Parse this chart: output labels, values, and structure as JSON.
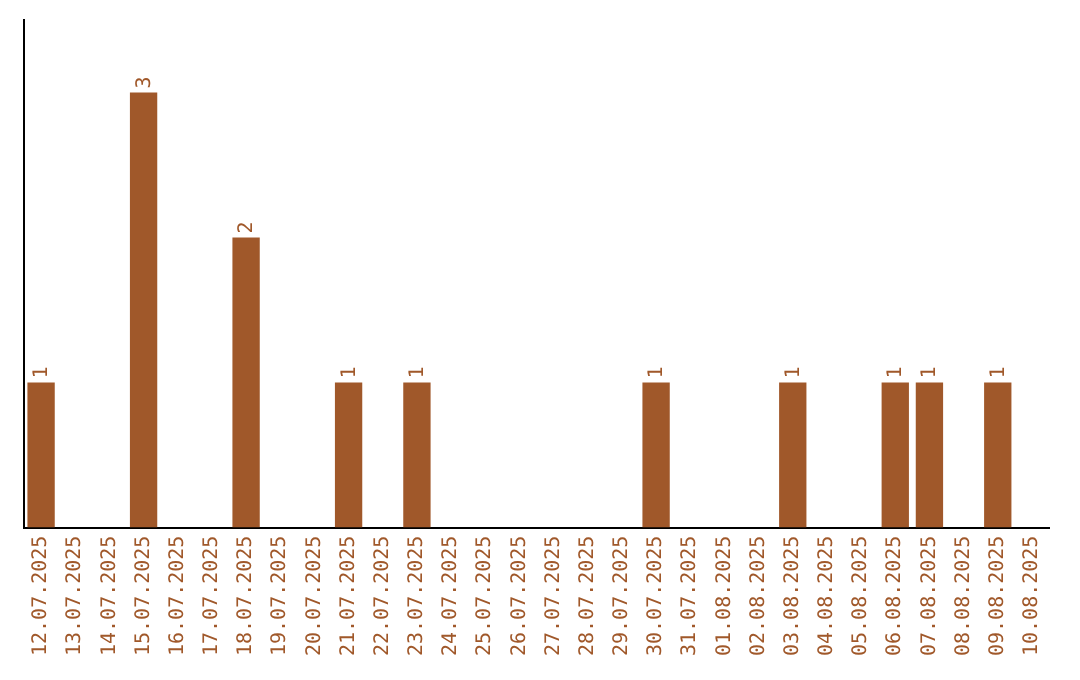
{
  "chart_data": {
    "type": "bar",
    "categories": [
      "12.07.2025",
      "13.07.2025",
      "14.07.2025",
      "15.07.2025",
      "16.07.2025",
      "17.07.2025",
      "18.07.2025",
      "19.07.2025",
      "20.07.2025",
      "21.07.2025",
      "22.07.2025",
      "23.07.2025",
      "24.07.2025",
      "25.07.2025",
      "26.07.2025",
      "27.07.2025",
      "28.07.2025",
      "29.07.2025",
      "30.07.2025",
      "31.07.2025",
      "01.08.2025",
      "02.08.2025",
      "03.08.2025",
      "04.08.2025",
      "05.08.2025",
      "06.08.2025",
      "07.08.2025",
      "08.08.2025",
      "09.08.2025",
      "10.08.2025"
    ],
    "values": [
      1,
      0,
      0,
      3,
      0,
      0,
      2,
      0,
      0,
      1,
      0,
      1,
      0,
      0,
      0,
      0,
      0,
      0,
      1,
      0,
      0,
      0,
      1,
      0,
      0,
      1,
      1,
      0,
      1,
      0
    ],
    "value_labels": [
      "1",
      null,
      null,
      "3",
      null,
      null,
      "2",
      null,
      null,
      "1",
      null,
      "1",
      null,
      null,
      null,
      null,
      null,
      null,
      "1",
      null,
      null,
      null,
      "1",
      null,
      null,
      "1",
      "1",
      null,
      "1",
      null
    ],
    "color": "#a0582a",
    "grid": false,
    "legend": false,
    "tick_labels": "x"
  }
}
